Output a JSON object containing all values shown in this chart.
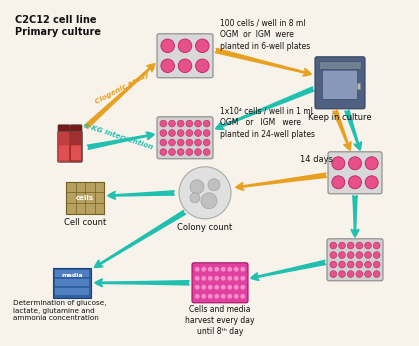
{
  "bg_color": "#f7f2ea",
  "orange": "#E8A020",
  "teal": "#20C0B0",
  "dark_red": "#7A1818",
  "pink": "#E8508A",
  "plate_border": "#888888",
  "incubator_blue": "#3A5878",
  "labels": {
    "title": "C2C12 cell line\nPrimary culture",
    "clogenic": "Clogenic assay",
    "akg": "α-KG intervention",
    "six_well_txt": "100 cells / well in 8 ml\nOGM  or  IGM  were\nplanted in 6-well plates",
    "twenty4_txt": "1x10⁴ cells / well in 1 ml\nOGM   or   IGM   were\nplanted in 24-well plates",
    "keep": "Keep in culture",
    "days14": "14 days",
    "colony_lbl": "Colony count",
    "cell_lbl": "Cell count",
    "harvest_lbl": "Cells and media\nharvest every day\nuntil 8ᵗʰ day",
    "media_lbl": "Determination of glucose,\nlactate, glutamine and\nammonia concentration"
  }
}
